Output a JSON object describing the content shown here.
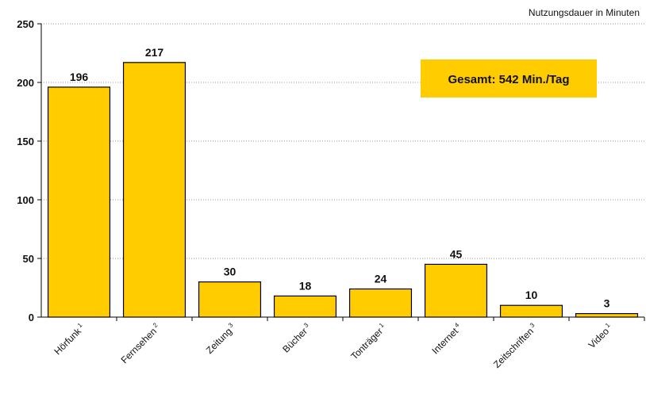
{
  "chart_data": {
    "type": "bar",
    "categories": [
      "Hörfunk",
      "Fernsehen",
      "Zeitung",
      "Bücher",
      "Tonträger",
      "Internet",
      "Zeitschriften",
      "Video"
    ],
    "category_footnotes": [
      "1",
      "2",
      "3",
      "3",
      "1",
      "4",
      "3",
      "1"
    ],
    "values": [
      196,
      217,
      30,
      18,
      24,
      45,
      10,
      3
    ],
    "data_labels": [
      "196",
      "217",
      "30",
      "18",
      "24",
      "45",
      "10",
      "3"
    ],
    "ylim": [
      0,
      250
    ],
    "yticks": [
      0,
      50,
      100,
      150,
      200,
      250
    ],
    "ytick_labels": [
      "0",
      "50",
      "100",
      "150",
      "200",
      "250"
    ],
    "ylabel": "Nutzungsdauer in Minuten",
    "grid": true,
    "annotation": "Gesamt: 542  Min./Tag",
    "colors": {
      "bar_fill": "#FFCC00",
      "bar_stroke": "#000000",
      "annotation_fill": "#FFCC00",
      "grid": "#999999"
    }
  }
}
